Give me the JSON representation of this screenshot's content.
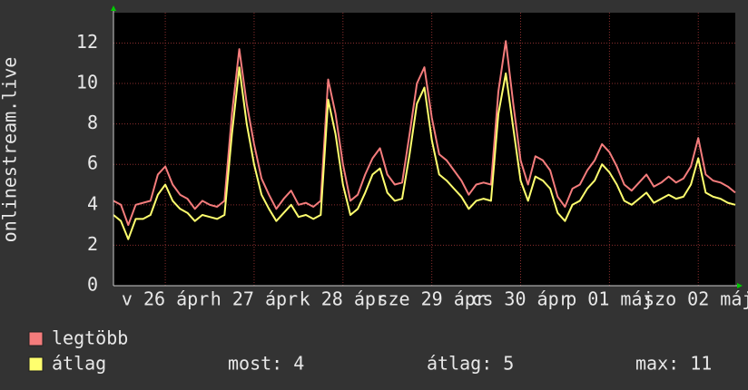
{
  "chart_data": {
    "type": "line",
    "y_label": "onlinestream.live",
    "x": [
      0,
      2,
      4,
      6,
      8,
      10,
      12,
      14,
      16,
      18,
      20,
      22,
      24,
      26,
      28,
      30,
      32,
      34,
      36,
      38,
      40,
      42,
      44,
      46,
      48,
      50,
      52,
      54,
      56,
      58,
      60,
      62,
      64,
      66,
      68,
      70,
      72,
      74,
      76,
      78,
      80,
      82,
      84,
      86,
      88,
      90,
      92,
      94,
      96,
      98,
      100,
      102,
      104,
      106,
      108,
      110,
      112,
      114,
      116,
      118,
      120,
      122,
      124,
      126,
      128,
      130,
      132,
      134,
      136,
      138,
      140,
      142,
      144,
      146,
      148,
      150,
      152,
      154,
      156,
      158,
      160,
      162,
      164,
      166,
      168
    ],
    "xlim": [
      0,
      168
    ],
    "xticks": [
      {
        "value": 14,
        "label": "v 26 ápr"
      },
      {
        "value": 38,
        "label": "h 27 ápr"
      },
      {
        "value": 62,
        "label": "k 28 ápr"
      },
      {
        "value": 86,
        "label": "sze 29 ápr"
      },
      {
        "value": 110,
        "label": "cs 30 ápr"
      },
      {
        "value": 134,
        "label": "p 01 máj"
      },
      {
        "value": 158,
        "label": "szo 02 máj"
      }
    ],
    "ylim": [
      0,
      13.5
    ],
    "yticks": [
      0,
      2,
      4,
      6,
      8,
      10,
      12
    ],
    "grid": true,
    "series": [
      {
        "name": "legtöbb",
        "color": "#f47c7c",
        "values": [
          4.2,
          4.0,
          3.0,
          4.0,
          4.1,
          4.2,
          5.5,
          5.9,
          5.0,
          4.5,
          4.3,
          3.8,
          4.2,
          4.0,
          3.9,
          4.2,
          8.5,
          11.7,
          9.0,
          7.0,
          5.3,
          4.5,
          3.8,
          4.3,
          4.7,
          4.0,
          4.1,
          3.9,
          4.2,
          10.2,
          8.5,
          6.0,
          4.2,
          4.5,
          5.5,
          6.3,
          6.8,
          5.5,
          5.0,
          5.1,
          7.5,
          10.0,
          10.8,
          8.3,
          6.5,
          6.2,
          5.7,
          5.2,
          4.5,
          5.0,
          5.1,
          5.0,
          9.6,
          12.1,
          9.0,
          6.2,
          5.0,
          6.4,
          6.2,
          5.7,
          4.4,
          3.9,
          4.8,
          5.0,
          5.7,
          6.2,
          7.0,
          6.6,
          5.9,
          5.0,
          4.7,
          5.1,
          5.5,
          4.9,
          5.1,
          5.4,
          5.1,
          5.3,
          5.9,
          7.3,
          5.5,
          5.2,
          5.1,
          4.9,
          4.6
        ]
      },
      {
        "name": "átlag",
        "color": "#ffff6e",
        "values": [
          3.5,
          3.2,
          2.3,
          3.3,
          3.3,
          3.5,
          4.5,
          5.0,
          4.2,
          3.8,
          3.6,
          3.2,
          3.5,
          3.4,
          3.3,
          3.5,
          7.5,
          10.8,
          8.0,
          6.0,
          4.5,
          3.8,
          3.2,
          3.6,
          4.0,
          3.4,
          3.5,
          3.3,
          3.5,
          9.2,
          7.5,
          5.0,
          3.5,
          3.8,
          4.6,
          5.5,
          5.8,
          4.6,
          4.2,
          4.3,
          6.5,
          9.0,
          9.8,
          7.2,
          5.5,
          5.2,
          4.8,
          4.4,
          3.8,
          4.2,
          4.3,
          4.2,
          8.5,
          10.5,
          7.8,
          5.2,
          4.2,
          5.4,
          5.2,
          4.8,
          3.6,
          3.2,
          4.0,
          4.2,
          4.8,
          5.2,
          6.0,
          5.6,
          5.0,
          4.2,
          4.0,
          4.3,
          4.6,
          4.1,
          4.3,
          4.5,
          4.3,
          4.4,
          5.0,
          6.3,
          4.6,
          4.4,
          4.3,
          4.1,
          4.0
        ]
      }
    ],
    "stats": [
      "most: 4",
      "átlag: 5",
      "max: 11"
    ]
  }
}
